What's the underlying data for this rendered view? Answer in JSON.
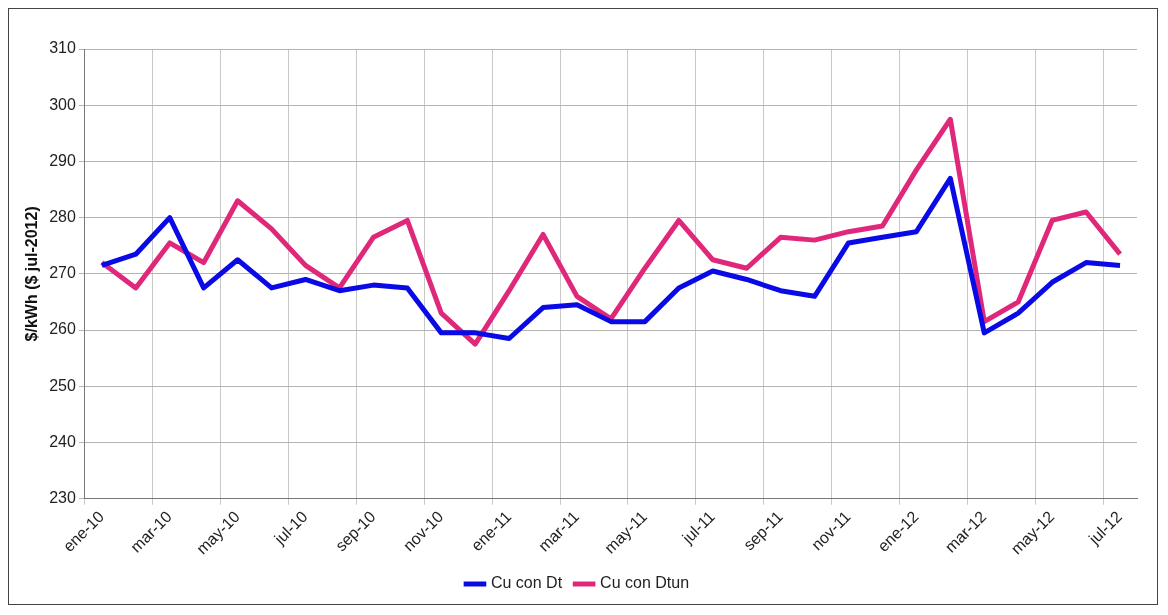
{
  "chart_data": {
    "type": "line",
    "ylabel": "$/kWh ($ jul-2012)",
    "categories": [
      "ene-10",
      null,
      "mar-10",
      null,
      "may-10",
      null,
      "jul-10",
      null,
      "sep-10",
      null,
      "nov-10",
      null,
      "ene-11",
      null,
      "mar-11",
      null,
      "may-11",
      null,
      "jul-11",
      null,
      "sep-11",
      null,
      "nov-11",
      null,
      "ene-12",
      null,
      "mar-12",
      null,
      "may-12",
      null,
      "jul-12"
    ],
    "series": [
      {
        "name": "Cu con Dt",
        "color": "#0a0ae6",
        "values": [
          271.5,
          273.5,
          280,
          267.5,
          272.5,
          267.5,
          269,
          267,
          268,
          267.5,
          259.5,
          259.5,
          258.5,
          264,
          264.5,
          261.5,
          261.5,
          267.5,
          270.5,
          269,
          267,
          266,
          275.5,
          276.5,
          277.5,
          287,
          259.5,
          263,
          268.5,
          272,
          271.5
        ]
      },
      {
        "name": "Cu con Dtun",
        "color": "#e0287a",
        "values": [
          272,
          267.5,
          275.5,
          272,
          283,
          278,
          271.5,
          267.5,
          276.5,
          279.5,
          263,
          257.5,
          267,
          277,
          266,
          262,
          271,
          279.5,
          272.5,
          271,
          276.5,
          276,
          277.5,
          278.5,
          288.5,
          297.5,
          261.5,
          265,
          279.5,
          281,
          273.5
        ]
      }
    ],
    "ylim": [
      230,
      310
    ],
    "yticks": [
      230,
      240,
      250,
      260,
      270,
      280,
      290,
      300,
      310
    ],
    "grid": true,
    "legend": "bottom",
    "marker": "none",
    "line_style": "solid"
  }
}
